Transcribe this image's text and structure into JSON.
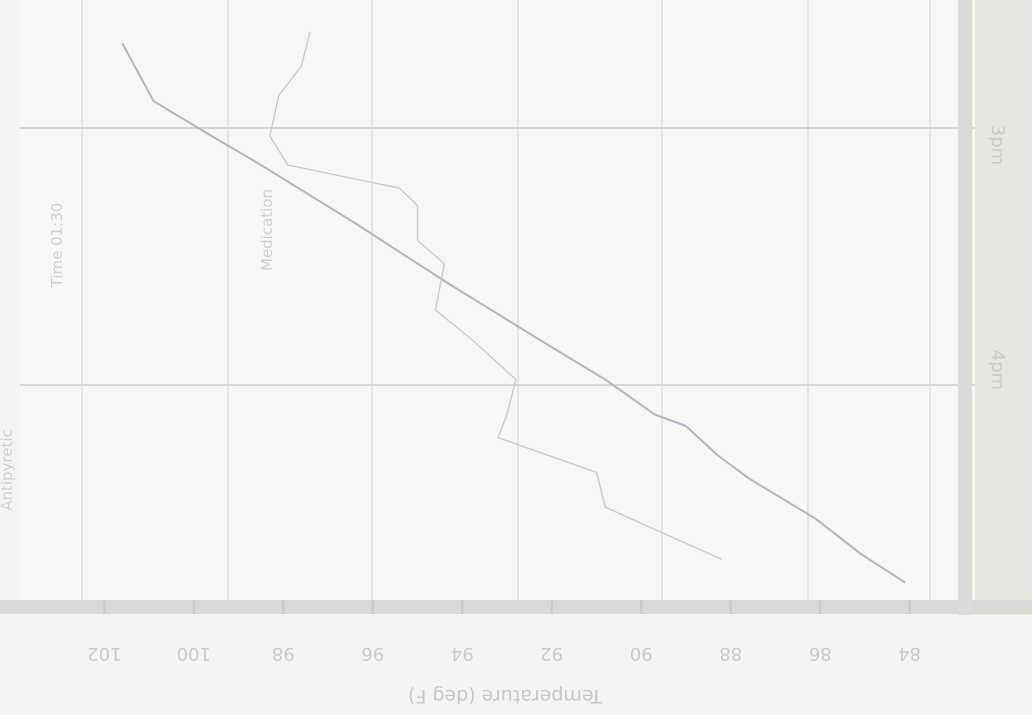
{
  "chart_data": {
    "type": "line",
    "orientation": "rotated-180",
    "xlabel": "Temperature (deg F)",
    "x_ticks": [
      "102",
      "100",
      "98",
      "96",
      "94",
      "92",
      "90",
      "88",
      "86",
      "84"
    ],
    "xlim": [
      83.5,
      102.5
    ],
    "series": [
      {
        "points": [
          {
            "t": 0.04,
            "v": 101.6
          },
          {
            "t": 0.14,
            "v": 100.9
          },
          {
            "t": 0.2,
            "v": 99.6
          },
          {
            "t": 0.25,
            "v": 98.5
          },
          {
            "t": 0.35,
            "v": 96.4
          },
          {
            "t": 0.45,
            "v": 94.4
          },
          {
            "t": 0.55,
            "v": 92.3
          },
          {
            "t": 0.62,
            "v": 90.8
          },
          {
            "t": 0.68,
            "v": 89.7
          },
          {
            "t": 0.7,
            "v": 89.0
          },
          {
            "t": 0.75,
            "v": 88.3
          },
          {
            "t": 0.79,
            "v": 87.6
          },
          {
            "t": 0.86,
            "v": 86.1
          },
          {
            "t": 0.92,
            "v": 85.1
          },
          {
            "t": 0.97,
            "v": 84.1
          }
        ]
      },
      {
        "points": [
          {
            "t": 0.02,
            "v": 97.4
          },
          {
            "t": 0.08,
            "v": 97.6
          },
          {
            "t": 0.13,
            "v": 98.1
          },
          {
            "t": 0.2,
            "v": 98.3
          },
          {
            "t": 0.25,
            "v": 97.9
          },
          {
            "t": 0.29,
            "v": 95.4
          },
          {
            "t": 0.32,
            "v": 95.0
          },
          {
            "t": 0.38,
            "v": 95.0
          },
          {
            "t": 0.42,
            "v": 94.4
          },
          {
            "t": 0.5,
            "v": 94.6
          },
          {
            "t": 0.55,
            "v": 93.8
          },
          {
            "t": 0.62,
            "v": 92.8
          },
          {
            "t": 0.68,
            "v": 93.0
          },
          {
            "t": 0.72,
            "v": 93.2
          },
          {
            "t": 0.78,
            "v": 91.0
          },
          {
            "t": 0.84,
            "v": 90.8
          },
          {
            "t": 0.93,
            "v": 88.2
          }
        ]
      }
    ],
    "annotations": [
      "Time 01:30",
      "Medication",
      "Antipyretic"
    ],
    "side_labels": [
      "3pm",
      "4pm"
    ],
    "grid": true,
    "colors": {
      "main_line": "#b4b4bc",
      "secondary_line": "#c9c9c9",
      "grid": "#dedede"
    }
  }
}
